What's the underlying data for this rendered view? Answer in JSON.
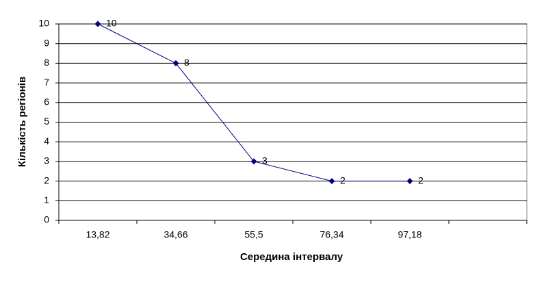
{
  "chart_data": {
    "type": "line",
    "x_label": "Середина інтервалу",
    "y_label": "Кількість регіонів",
    "categories": [
      "13,82",
      "34,66",
      "55,5",
      "76,34",
      "97,18",
      null
    ],
    "values": [
      10,
      8,
      3,
      2,
      2,
      null
    ],
    "color": "#000080",
    "ylim": [
      0,
      10
    ],
    "yticks": [
      0,
      1,
      2,
      3,
      4,
      5,
      6,
      7,
      8,
      9,
      10
    ],
    "grid": true
  }
}
